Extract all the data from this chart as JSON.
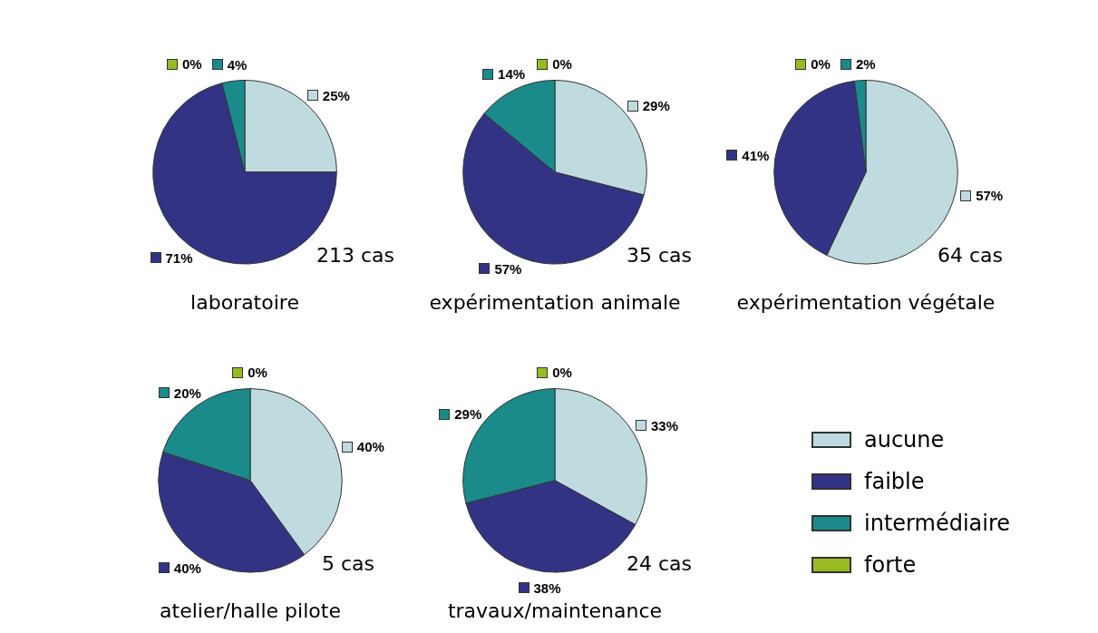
{
  "chart_data": [
    {
      "type": "pie",
      "title": "laboratoire",
      "annotations": [
        "213 cas"
      ],
      "categories": [
        "aucune",
        "faible",
        "intermédiaire",
        "forte"
      ],
      "values": [
        25,
        71,
        4,
        0
      ],
      "value_labels": [
        "25%",
        "71%",
        "4%",
        "0%"
      ],
      "colors": [
        "#bfdbdf",
        "#333385",
        "#1b8a8a",
        "#99bb22"
      ],
      "legend": "right"
    },
    {
      "type": "pie",
      "title": "expérimentation animale",
      "annotations": [
        "35 cas"
      ],
      "categories": [
        null,
        null,
        null,
        null
      ],
      "values": [
        29,
        57,
        14,
        0
      ],
      "value_labels": [
        "29%",
        "57%",
        "14%",
        "0%"
      ],
      "colors": [
        "#bfdbdf",
        "#333385",
        "#1b8a8a",
        "#99bb22"
      ]
    },
    {
      "type": "pie",
      "title": "expérimentation végétale",
      "annotations": [
        "64 cas"
      ],
      "categories": [
        null,
        null,
        null,
        null
      ],
      "values": [
        57,
        41,
        2,
        0
      ],
      "value_labels": [
        "57%",
        "41%",
        "2%",
        "0%"
      ],
      "colors": [
        "#bfdbdf",
        "#333385",
        "#1b8a8a",
        "#99bb22"
      ]
    },
    {
      "type": "pie",
      "title": "atelier/halle pilote",
      "annotations": [
        "5 cas"
      ],
      "categories": [
        null,
        null,
        null,
        null
      ],
      "values": [
        40,
        40,
        20,
        0
      ],
      "value_labels": [
        "40%",
        "40%",
        "20%",
        "0%"
      ],
      "colors": [
        "#bfdbdf",
        "#333385",
        "#1b8a8a",
        "#99bb22"
      ]
    },
    {
      "type": "pie",
      "title": "travaux/maintenance",
      "annotations": [
        "24 cas"
      ],
      "categories": [
        null,
        null,
        null,
        null
      ],
      "values": [
        33,
        38,
        29,
        0
      ],
      "value_labels": [
        "33%",
        "38%",
        "29%",
        "0%"
      ],
      "colors": [
        "#bfdbdf",
        "#333385",
        "#1b8a8a",
        "#99bb22"
      ]
    }
  ]
}
